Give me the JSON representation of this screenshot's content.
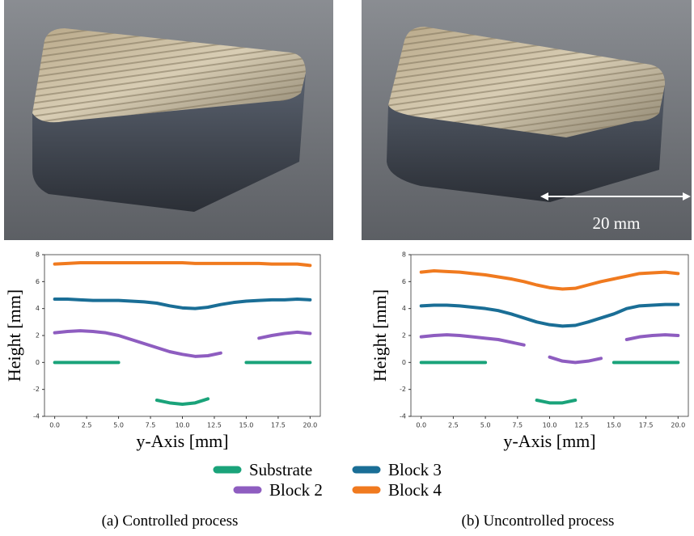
{
  "chart_data": [
    {
      "type": "line",
      "xlabel": "y-Axis [mm]",
      "ylabel": "Height [mm]",
      "x": [
        0,
        1,
        2,
        3,
        4,
        5,
        6,
        7,
        8,
        9,
        10,
        11,
        12,
        13,
        14,
        15,
        16,
        17,
        18,
        19,
        20
      ],
      "xlim": [
        -0.8,
        20.8
      ],
      "ylim": [
        -4,
        8
      ],
      "xticks": [
        {
          "value": 0,
          "label": "0.0"
        },
        {
          "value": 2.5,
          "label": "2.5"
        },
        {
          "value": 5,
          "label": "5.0"
        },
        {
          "value": 7.5,
          "label": "7.5"
        },
        {
          "value": 10,
          "label": "10.0"
        },
        {
          "value": 12.5,
          "label": "12.5"
        },
        {
          "value": 15,
          "label": "15.0"
        },
        {
          "value": 17.5,
          "label": "17.5"
        },
        {
          "value": 20,
          "label": "20.0"
        }
      ],
      "yticks": [
        -4,
        -2,
        0,
        2,
        4,
        6,
        8
      ],
      "series": [
        {
          "name": "Substrate",
          "color": "#1aa37a",
          "values": [
            0,
            0,
            0,
            0,
            0,
            0,
            null,
            null,
            -2.8,
            -3.0,
            -3.1,
            -3.0,
            -2.7,
            null,
            null,
            0,
            0,
            0,
            0,
            0,
            0
          ]
        },
        {
          "name": "Block 2",
          "color": "#8e5dc0",
          "values": [
            2.2,
            2.3,
            2.35,
            2.3,
            2.2,
            2.0,
            1.7,
            1.4,
            1.1,
            0.8,
            0.6,
            0.45,
            0.5,
            0.7,
            null,
            null,
            1.8,
            2.0,
            2.15,
            2.25,
            2.15
          ]
        },
        {
          "name": "Block 3",
          "color": "#1a6e96",
          "values": [
            4.7,
            4.7,
            4.65,
            4.6,
            4.6,
            4.6,
            4.55,
            4.5,
            4.4,
            4.2,
            4.05,
            4.0,
            4.1,
            4.3,
            4.45,
            4.55,
            4.6,
            4.65,
            4.65,
            4.7,
            4.65
          ]
        },
        {
          "name": "Block 4",
          "color": "#f07a1f",
          "values": [
            7.3,
            7.35,
            7.4,
            7.4,
            7.4,
            7.4,
            7.4,
            7.4,
            7.4,
            7.4,
            7.4,
            7.35,
            7.35,
            7.35,
            7.35,
            7.35,
            7.35,
            7.3,
            7.3,
            7.3,
            7.2
          ]
        }
      ]
    },
    {
      "type": "line",
      "xlabel": "y-Axis [mm]",
      "ylabel": "Height [mm]",
      "x": [
        0,
        1,
        2,
        3,
        4,
        5,
        6,
        7,
        8,
        9,
        10,
        11,
        12,
        13,
        14,
        15,
        16,
        17,
        18,
        19,
        20
      ],
      "xlim": [
        -0.8,
        20.8
      ],
      "ylim": [
        -4,
        8
      ],
      "xticks": [
        {
          "value": 0,
          "label": "0.0"
        },
        {
          "value": 2.5,
          "label": "2.5"
        },
        {
          "value": 5,
          "label": "5.0"
        },
        {
          "value": 7.5,
          "label": "7.5"
        },
        {
          "value": 10,
          "label": "10.0"
        },
        {
          "value": 12.5,
          "label": "12.5"
        },
        {
          "value": 15,
          "label": "15.0"
        },
        {
          "value": 17.5,
          "label": "17.5"
        },
        {
          "value": 20,
          "label": "20.0"
        }
      ],
      "yticks": [
        -4,
        -2,
        0,
        2,
        4,
        6,
        8
      ],
      "series": [
        {
          "name": "Substrate",
          "color": "#1aa37a",
          "values": [
            0,
            0,
            0,
            0,
            0,
            0,
            null,
            null,
            null,
            -2.8,
            -3.0,
            -3.0,
            -2.8,
            null,
            null,
            0,
            0,
            0,
            0,
            0,
            0
          ]
        },
        {
          "name": "Block 2",
          "color": "#8e5dc0",
          "values": [
            1.9,
            2.0,
            2.05,
            2.0,
            1.9,
            1.8,
            1.7,
            1.5,
            1.3,
            null,
            0.4,
            0.1,
            0.0,
            0.1,
            0.3,
            null,
            1.7,
            1.9,
            2.0,
            2.05,
            2.0
          ]
        },
        {
          "name": "Block 3",
          "color": "#1a6e96",
          "values": [
            4.2,
            4.25,
            4.25,
            4.2,
            4.1,
            4.0,
            3.85,
            3.6,
            3.3,
            3.0,
            2.8,
            2.7,
            2.75,
            3.0,
            3.3,
            3.6,
            4.0,
            4.2,
            4.25,
            4.3,
            4.3
          ]
        },
        {
          "name": "Block 4",
          "color": "#f07a1f",
          "values": [
            6.7,
            6.8,
            6.75,
            6.7,
            6.6,
            6.5,
            6.35,
            6.2,
            6.0,
            5.75,
            5.55,
            5.45,
            5.5,
            5.75,
            6.0,
            6.2,
            6.4,
            6.6,
            6.65,
            6.7,
            6.6
          ]
        }
      ]
    }
  ],
  "captions": [
    "(a) Controlled process",
    "(b) Uncontrolled process"
  ],
  "scale_bar_label": "20 mm"
}
